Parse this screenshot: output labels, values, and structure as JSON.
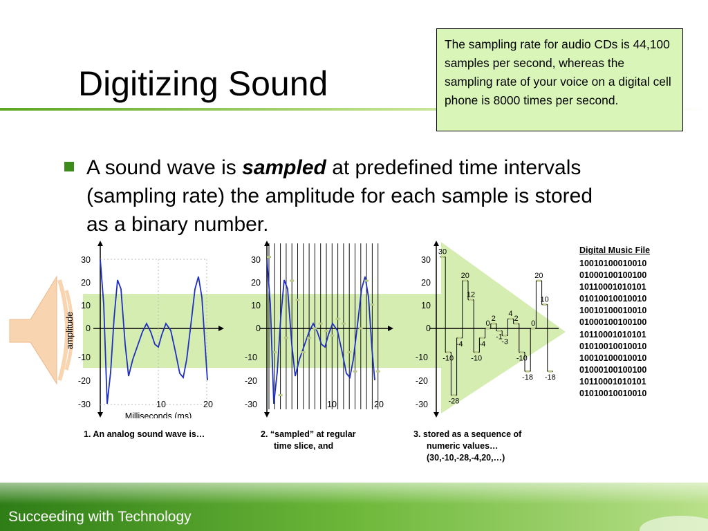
{
  "slide": {
    "title": "Digitizing Sound",
    "callout": "The sampling rate for audio CDs is 44,100 samples per second, whereas the sampling rate of your voice on a digital cell phone is 8000 times per second.",
    "bullet": {
      "before": "A sound wave is ",
      "emphasis": "sampled",
      "after": " at predefined time intervals (sampling rate) the amplitude for each sample is stored as a binary number."
    },
    "footer": "Succeeding with Technology",
    "colors": {
      "accent_green": "#3d8a1d",
      "callout_bg": "#d9f5b8",
      "arrow_fill": "#d5edb0",
      "speaker": "#f9d4b0",
      "wave": "#1f2fbf"
    }
  },
  "panel1": {
    "y_ticks": [
      "30",
      "20",
      "10",
      "0",
      "-10",
      "-20",
      "-30"
    ],
    "x_ticks": [
      "10",
      "20"
    ],
    "y_axis_label": "amplitude",
    "x_axis_label": "Milliseconds (ms)",
    "caption": "1. An analog sound wave is…"
  },
  "panel2": {
    "y_ticks": [
      "30",
      "20",
      "10",
      "0",
      "-10",
      "-20",
      "-30"
    ],
    "x_ticks": [
      "10",
      "20"
    ],
    "caption_line1": "2. “sampled” at regular",
    "caption_line2": "time slice, and"
  },
  "panel3": {
    "y_ticks": [
      "30",
      "20",
      "10",
      "0",
      "-10",
      "-20",
      "-30"
    ],
    "samples": [
      30,
      -10,
      -28,
      -4,
      20,
      12,
      -10,
      -4,
      0,
      2,
      -1,
      -3,
      4,
      2,
      -10,
      -18,
      0,
      20,
      10,
      -18
    ],
    "caption_line1": "3. stored as a sequence of",
    "caption_line2": "numeric values…",
    "caption_line3": "(30,-10,-28,-4,20,…)"
  },
  "digital_file": {
    "title": "Digital Music File",
    "lines": [
      "10010100010010",
      "01000100100100",
      "10110001010101",
      "01010010010010",
      "10010100010010",
      "01000100100100",
      "10110001010101",
      "01010010010010",
      "10010100010010",
      "01000100100100",
      "10110001010101",
      "01010010010010"
    ]
  }
}
